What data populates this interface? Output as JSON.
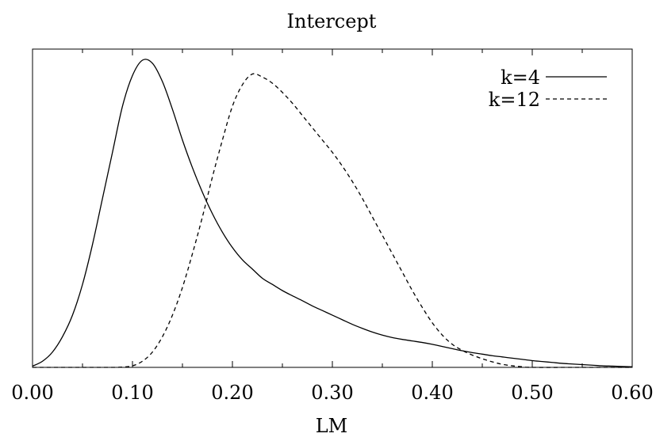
{
  "chart_data": {
    "type": "line",
    "title": "Intercept",
    "xlabel": "LM",
    "ylabel": "",
    "xlim": [
      0.0,
      0.6
    ],
    "ylim": [
      0.0,
      1.0
    ],
    "x_ticks": [
      "0.00",
      "0.10",
      "0.20",
      "0.30",
      "0.40",
      "0.50",
      "0.60"
    ],
    "grid": false,
    "legend_position": "top-right",
    "series": [
      {
        "name": "k=4",
        "line_style": "solid",
        "color": "#000000",
        "points": [
          [
            0.0,
            0.004
          ],
          [
            0.01,
            0.02
          ],
          [
            0.02,
            0.05
          ],
          [
            0.03,
            0.1
          ],
          [
            0.04,
            0.17
          ],
          [
            0.05,
            0.27
          ],
          [
            0.06,
            0.4
          ],
          [
            0.07,
            0.55
          ],
          [
            0.08,
            0.7
          ],
          [
            0.09,
            0.85
          ],
          [
            0.1,
            0.95
          ],
          [
            0.11,
            1.0
          ],
          [
            0.12,
            0.99
          ],
          [
            0.13,
            0.93
          ],
          [
            0.14,
            0.84
          ],
          [
            0.15,
            0.74
          ],
          [
            0.16,
            0.65
          ],
          [
            0.17,
            0.57
          ],
          [
            0.18,
            0.5
          ],
          [
            0.19,
            0.44
          ],
          [
            0.2,
            0.39
          ],
          [
            0.21,
            0.35
          ],
          [
            0.22,
            0.32
          ],
          [
            0.23,
            0.29
          ],
          [
            0.24,
            0.27
          ],
          [
            0.25,
            0.25
          ],
          [
            0.26,
            0.233
          ],
          [
            0.27,
            0.217
          ],
          [
            0.28,
            0.2
          ],
          [
            0.29,
            0.185
          ],
          [
            0.3,
            0.17
          ],
          [
            0.31,
            0.155
          ],
          [
            0.32,
            0.14
          ],
          [
            0.33,
            0.127
          ],
          [
            0.34,
            0.115
          ],
          [
            0.35,
            0.105
          ],
          [
            0.36,
            0.097
          ],
          [
            0.37,
            0.091
          ],
          [
            0.38,
            0.086
          ],
          [
            0.39,
            0.081
          ],
          [
            0.4,
            0.075
          ],
          [
            0.41,
            0.068
          ],
          [
            0.42,
            0.061
          ],
          [
            0.43,
            0.054
          ],
          [
            0.44,
            0.048
          ],
          [
            0.45,
            0.043
          ],
          [
            0.46,
            0.038
          ],
          [
            0.47,
            0.034
          ],
          [
            0.48,
            0.03
          ],
          [
            0.49,
            0.026
          ],
          [
            0.5,
            0.022
          ],
          [
            0.51,
            0.019
          ],
          [
            0.52,
            0.016
          ],
          [
            0.53,
            0.013
          ],
          [
            0.54,
            0.011
          ],
          [
            0.55,
            0.009
          ],
          [
            0.56,
            0.007
          ],
          [
            0.57,
            0.005
          ],
          [
            0.58,
            0.004
          ],
          [
            0.59,
            0.003
          ],
          [
            0.6,
            0.002
          ]
        ]
      },
      {
        "name": "k=12",
        "line_style": "dashed",
        "color": "#000000",
        "points": [
          [
            0.0,
            0.0
          ],
          [
            0.05,
            0.0
          ],
          [
            0.08,
            0.0
          ],
          [
            0.09,
            0.001
          ],
          [
            0.1,
            0.005
          ],
          [
            0.11,
            0.02
          ],
          [
            0.12,
            0.05
          ],
          [
            0.13,
            0.1
          ],
          [
            0.14,
            0.17
          ],
          [
            0.15,
            0.26
          ],
          [
            0.16,
            0.37
          ],
          [
            0.17,
            0.49
          ],
          [
            0.18,
            0.62
          ],
          [
            0.19,
            0.74
          ],
          [
            0.2,
            0.85
          ],
          [
            0.21,
            0.92
          ],
          [
            0.22,
            0.955
          ],
          [
            0.23,
            0.945
          ],
          [
            0.24,
            0.925
          ],
          [
            0.25,
            0.895
          ],
          [
            0.26,
            0.86
          ],
          [
            0.27,
            0.82
          ],
          [
            0.28,
            0.78
          ],
          [
            0.29,
            0.74
          ],
          [
            0.3,
            0.7
          ],
          [
            0.31,
            0.655
          ],
          [
            0.32,
            0.605
          ],
          [
            0.33,
            0.55
          ],
          [
            0.34,
            0.49
          ],
          [
            0.35,
            0.43
          ],
          [
            0.36,
            0.37
          ],
          [
            0.37,
            0.31
          ],
          [
            0.38,
            0.25
          ],
          [
            0.39,
            0.195
          ],
          [
            0.4,
            0.145
          ],
          [
            0.41,
            0.105
          ],
          [
            0.42,
            0.075
          ],
          [
            0.43,
            0.055
          ],
          [
            0.44,
            0.04
          ],
          [
            0.45,
            0.028
          ],
          [
            0.46,
            0.018
          ],
          [
            0.47,
            0.01
          ],
          [
            0.48,
            0.005
          ],
          [
            0.49,
            0.002
          ],
          [
            0.5,
            0.0
          ],
          [
            0.55,
            0.0
          ],
          [
            0.6,
            0.0
          ]
        ]
      }
    ]
  }
}
